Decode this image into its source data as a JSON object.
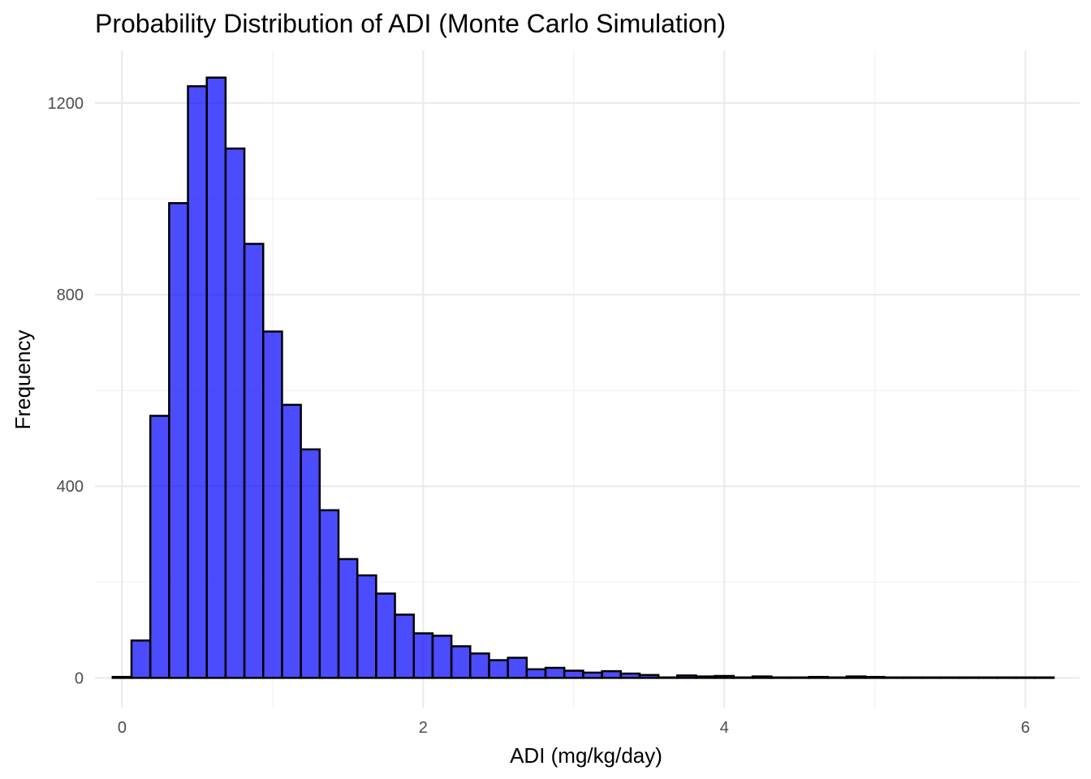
{
  "chart_data": {
    "type": "bar",
    "title": "Probability Distribution of ADI (Monte Carlo Simulation)",
    "xlabel": "ADI (mg/kg/day)",
    "ylabel": "Frequency",
    "xlim": [
      -0.18,
      6.36
    ],
    "ylim": [
      -62,
      1310
    ],
    "x_ticks": [
      0,
      2,
      4,
      6
    ],
    "y_ticks": [
      0,
      400,
      800,
      1200
    ],
    "grid": true,
    "legend": "none",
    "bar_color": "#0000ff",
    "bar_opacity": 0.7,
    "bar_outline": "#000000",
    "bin_width": 0.125,
    "bin_starts": [
      -0.0625,
      0.0625,
      0.1875,
      0.3125,
      0.4375,
      0.5625,
      0.6875,
      0.8125,
      0.9375,
      1.0625,
      1.1875,
      1.3125,
      1.4375,
      1.5625,
      1.6875,
      1.8125,
      1.9375,
      2.0625,
      2.1875,
      2.3125,
      2.4375,
      2.5625,
      2.6875,
      2.8125,
      2.9375,
      3.0625,
      3.1875,
      3.3125,
      3.4375,
      3.5625,
      3.6875,
      3.8125,
      3.9375,
      4.0625,
      4.1875,
      4.3125,
      4.4375,
      4.5625,
      4.6875,
      4.8125,
      4.9375,
      5.0625,
      5.1875,
      5.3125,
      5.4375,
      5.5625,
      5.6875,
      5.8125,
      5.9375,
      6.0625
    ],
    "values": [
      2,
      78,
      547,
      991,
      1235,
      1253,
      1105,
      906,
      723,
      570,
      477,
      350,
      248,
      214,
      176,
      132,
      93,
      88,
      66,
      51,
      37,
      42,
      18,
      21,
      15,
      11,
      14,
      9,
      6,
      1,
      5,
      3,
      4,
      1,
      3,
      1,
      1,
      2,
      1,
      3,
      2,
      1,
      1,
      1,
      1,
      1,
      1,
      1,
      1,
      1
    ]
  }
}
